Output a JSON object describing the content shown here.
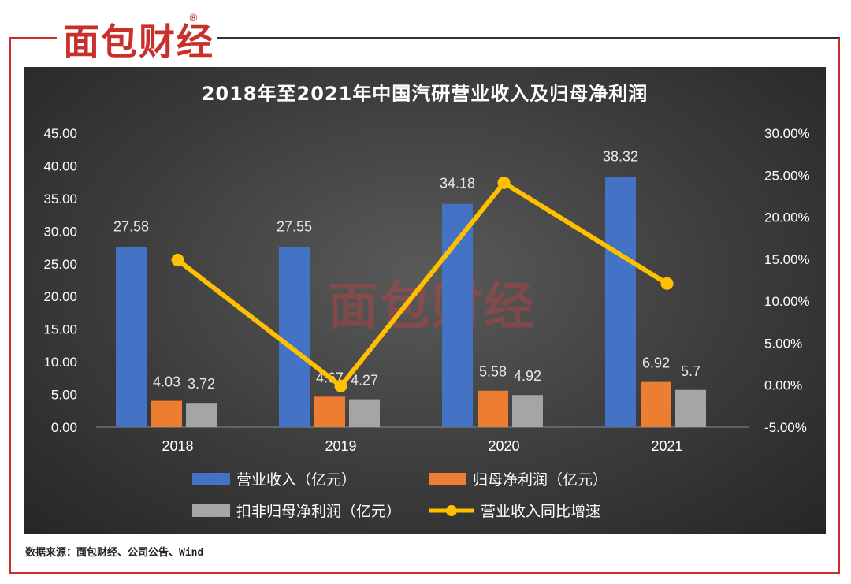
{
  "brand": {
    "logo_text": "面包财经",
    "registered_mark": "®"
  },
  "source_text": "数据来源：面包财经、公司公告、Wind",
  "colors": {
    "revenue": "#4472c4",
    "net_profit": "#ed7d31",
    "deducted_profit": "#a5a5a5",
    "growth": "#ffc000",
    "frame": "#c9302c"
  },
  "chart_data": {
    "type": "bar",
    "title": "2018年至2021年中国汽研营业收入及归母净利润",
    "categories": [
      "2018",
      "2019",
      "2020",
      "2021"
    ],
    "series": [
      {
        "name": "营业收入（亿元）",
        "type": "bar",
        "axis": "left",
        "values": [
          27.58,
          27.55,
          34.18,
          38.32
        ],
        "labels": [
          "27.58",
          "27.55",
          "34.18",
          "38.32"
        ]
      },
      {
        "name": "归母净利润（亿元）",
        "type": "bar",
        "axis": "left",
        "values": [
          4.03,
          4.67,
          5.58,
          6.92
        ],
        "labels": [
          "4.03",
          "4.67",
          "5.58",
          "6.92"
        ]
      },
      {
        "name": "扣非归母净利润（亿元）",
        "type": "bar",
        "axis": "left",
        "values": [
          3.72,
          4.27,
          4.92,
          5.7
        ],
        "labels": [
          "3.72",
          "4.27",
          "4.92",
          "5.7"
        ]
      },
      {
        "name": "营业收入同比增速",
        "type": "line",
        "axis": "right",
        "values": [
          14.9,
          -0.1,
          24.1,
          12.1
        ]
      }
    ],
    "y_left": {
      "min": 0,
      "max": 45,
      "ticks": [
        "0.00",
        "5.00",
        "10.00",
        "15.00",
        "20.00",
        "25.00",
        "30.00",
        "35.00",
        "40.00",
        "45.00"
      ]
    },
    "y_right": {
      "min": -5,
      "max": 30,
      "ticks": [
        "-5.00%",
        "0.00%",
        "5.00%",
        "10.00%",
        "15.00%",
        "20.00%",
        "25.00%",
        "30.00%"
      ]
    },
    "legend_position": "bottom",
    "grid": false
  }
}
